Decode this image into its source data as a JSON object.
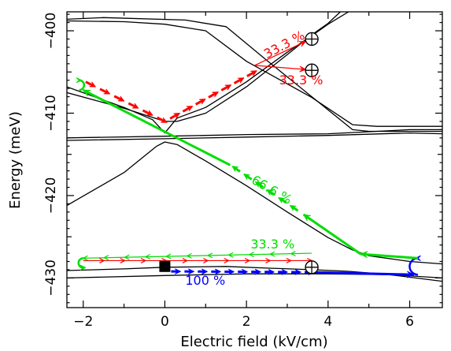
{
  "chart_data": {
    "type": "line",
    "title": "",
    "xlabel": "Electric field (kV/cm)",
    "ylabel": "Energy (meV)",
    "xlim": [
      -2.4,
      6.8
    ],
    "ylim": [
      -433.6,
      -397.7
    ],
    "x_ticks": [
      -2,
      0,
      2,
      4,
      6
    ],
    "x_tick_labels": [
      "−2",
      "0",
      "2",
      "4",
      "6"
    ],
    "y_ticks": [
      -400,
      -410,
      -420,
      -430
    ],
    "y_tick_labels": [
      "−400",
      "−410",
      "−420",
      "−430"
    ],
    "grid": false,
    "legend": "none",
    "colors": {
      "levels": "#000000",
      "red": "#ff0000",
      "green": "#00dd00",
      "blue": "#0000ff"
    },
    "series": [
      {
        "values": [
          [
            -2.4,
            -398.6
          ],
          [
            -1.5,
            -398.4
          ],
          [
            0.5,
            -398.7
          ],
          [
            1.5,
            -399.5
          ],
          [
            2.5,
            -403.6
          ],
          [
            3.6,
            -408.0
          ],
          [
            4.6,
            -412.0
          ],
          [
            5.0,
            -412.2
          ],
          [
            6.8,
            -412.2
          ]
        ]
      },
      {
        "values": [
          [
            -2.4,
            -398.8
          ],
          [
            -1.0,
            -398.9
          ],
          [
            0.0,
            -399.2
          ],
          [
            1.0,
            -400.0
          ],
          [
            2.0,
            -403.7
          ],
          [
            3.6,
            -408.1
          ],
          [
            4.6,
            -411.4
          ],
          [
            5.2,
            -411.6
          ],
          [
            6.8,
            -411.6
          ]
        ]
      },
      {
        "values": [
          [
            -2.4,
            -407.5
          ],
          [
            -1.0,
            -409.4
          ],
          [
            0.0,
            -411.0
          ],
          [
            0.3,
            -411.0
          ],
          [
            1.0,
            -410.0
          ],
          [
            2.0,
            -406.8
          ],
          [
            3.0,
            -402.9
          ],
          [
            3.6,
            -400.5
          ],
          [
            4.0,
            -399.1
          ],
          [
            4.3,
            -397.7
          ]
        ]
      },
      {
        "values": [
          [
            -2.4,
            -406.8
          ],
          [
            -1.0,
            -409.3
          ],
          [
            -0.3,
            -410.8
          ],
          [
            0.0,
            -412.4
          ],
          [
            0.3,
            -410.6
          ],
          [
            1.0,
            -409.3
          ],
          [
            2.0,
            -406.2
          ],
          [
            3.0,
            -402.6
          ],
          [
            3.6,
            -400.6
          ],
          [
            4.0,
            -399.2
          ],
          [
            4.5,
            -397.7
          ]
        ]
      },
      {
        "values": [
          [
            -2.4,
            -413.0
          ],
          [
            0.0,
            -412.8
          ],
          [
            2.0,
            -412.6
          ],
          [
            4.0,
            -412.5
          ],
          [
            6.0,
            -412.0
          ],
          [
            6.8,
            -412.0
          ]
        ]
      },
      {
        "values": [
          [
            -2.4,
            -413.3
          ],
          [
            0.0,
            -413.1
          ],
          [
            2.0,
            -412.9
          ],
          [
            4.0,
            -412.7
          ],
          [
            6.0,
            -412.4
          ],
          [
            6.8,
            -412.5
          ]
        ]
      },
      {
        "values": [
          [
            -2.4,
            -421.2
          ],
          [
            -1.0,
            -417.2
          ],
          [
            -0.2,
            -414.0
          ],
          [
            0.0,
            -413.5
          ],
          [
            0.3,
            -413.8
          ],
          [
            1.0,
            -415.8
          ],
          [
            2.0,
            -418.8
          ],
          [
            3.0,
            -422.0
          ],
          [
            4.0,
            -425.1
          ],
          [
            4.6,
            -426.6
          ],
          [
            5.0,
            -427.3
          ],
          [
            6.0,
            -428.0
          ],
          [
            6.8,
            -428.3
          ]
        ]
      },
      {
        "values": [
          [
            -2.4,
            -429.1
          ],
          [
            -1.0,
            -428.9
          ],
          [
            0.0,
            -428.7
          ],
          [
            1.5,
            -428.6
          ],
          [
            2.5,
            -428.8
          ],
          [
            3.6,
            -429.0
          ],
          [
            4.5,
            -429.2
          ],
          [
            5.5,
            -429.6
          ],
          [
            6.8,
            -430.4
          ]
        ]
      },
      {
        "values": [
          [
            -2.4,
            -430.0
          ],
          [
            0.0,
            -429.7
          ],
          [
            2.0,
            -429.5
          ],
          [
            4.0,
            -429.5
          ],
          [
            5.5,
            -429.6
          ],
          [
            6.8,
            -430.0
          ]
        ]
      }
    ],
    "annotations": [
      {
        "text": "33.3 %",
        "color": "#ff0000",
        "x": 2.5,
        "y": -403.4,
        "angle": -28
      },
      {
        "text": "33.3 %",
        "color": "#ff0000",
        "x": 2.8,
        "y": -406.5,
        "angle": 0
      },
      {
        "text": "66.6 %",
        "color": "#00dd00",
        "x": 2.1,
        "y": -418.4,
        "angle": 30
      },
      {
        "text": "33.3 %",
        "color": "#00dd00",
        "x": 2.1,
        "y": -426.4,
        "angle": 0
      },
      {
        "text": "100 %",
        "color": "#0000ff",
        "x": 0.5,
        "y": -430.8,
        "angle": 0
      }
    ],
    "states": [
      {
        "marker": "circled-plus",
        "x": 3.6,
        "y": -401.0
      },
      {
        "marker": "circled-plus",
        "x": 3.6,
        "y": -404.8
      },
      {
        "marker": "circled-plus",
        "x": 3.6,
        "y": -428.7
      },
      {
        "marker": "filled-square",
        "x": 0.0,
        "y": -428.6
      }
    ],
    "transitions": [
      {
        "color": "#0000ff",
        "style": "arrowheads",
        "from": [
          0.0,
          -429.2
        ],
        "to": [
          3.6,
          -429.3
        ]
      },
      {
        "color": "#0000ff",
        "style": "thick-solid",
        "from": [
          3.6,
          -429.3
        ],
        "to": [
          6.1,
          -429.6
        ]
      },
      {
        "color": "#0000ff",
        "style": "u-turn",
        "from": [
          6.2,
          -429.6
        ],
        "to": [
          6.2,
          -427.6
        ]
      },
      {
        "color": "#00dd00",
        "style": "thick-solid",
        "from": [
          6.2,
          -427.6
        ],
        "to": [
          4.8,
          -427.1
        ]
      },
      {
        "color": "#00dd00",
        "style": "small-arrows",
        "from": [
          3.6,
          -427.0
        ],
        "to": [
          -2.0,
          -427.6
        ]
      },
      {
        "color": "#ff0000",
        "style": "small-arrows",
        "from": [
          -2.0,
          -427.9
        ],
        "to": [
          3.6,
          -427.9
        ]
      },
      {
        "color": "#00dd00",
        "style": "u-turn",
        "from": [
          -2.0,
          -427.6
        ],
        "to": [
          -2.0,
          -427.9
        ]
      },
      {
        "color": "#00dd00",
        "style": "thick-solid",
        "from": [
          4.8,
          -427.1
        ],
        "to": [
          3.4,
          -422.3
        ]
      },
      {
        "color": "#00dd00",
        "style": "arrowheads",
        "from": [
          3.4,
          -422.3
        ],
        "to": [
          1.7,
          -416.6
        ]
      },
      {
        "color": "#00dd00",
        "style": "thick-solid",
        "from": [
          1.6,
          -416.3
        ],
        "to": [
          -2.0,
          -407.2
        ]
      },
      {
        "color": "#00dd00",
        "style": "u-turn",
        "from": [
          -2.1,
          -407.2
        ],
        "to": [
          -2.1,
          -406.0
        ]
      },
      {
        "color": "#ff0000",
        "style": "dashed-arrows",
        "from": [
          -2.1,
          -405.8
        ],
        "to": [
          0.0,
          -411.0
        ]
      },
      {
        "color": "#ff0000",
        "style": "dashed-arrows",
        "from": [
          0.0,
          -411.0
        ],
        "to": [
          2.2,
          -405.0
        ]
      },
      {
        "color": "#ff0000",
        "style": "thin-arrow",
        "from": [
          2.2,
          -404.2
        ],
        "to": [
          3.45,
          -401.3
        ]
      },
      {
        "color": "#ff0000",
        "style": "thin-arrow",
        "from": [
          2.2,
          -404.2
        ],
        "to": [
          3.45,
          -404.7
        ]
      }
    ]
  }
}
